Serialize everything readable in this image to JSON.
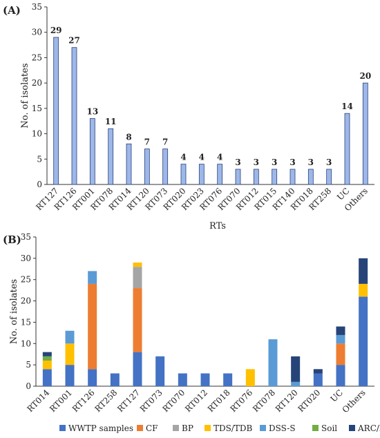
{
  "chart_data": [
    {
      "panel": "(A)",
      "type": "bar",
      "xlabel": "RTs",
      "ylabel": "No. of isolates",
      "ylim": [
        0,
        35
      ],
      "yticks": [
        0,
        5,
        10,
        15,
        20,
        25,
        30,
        35
      ],
      "categories": [
        "RT127",
        "RT126",
        "RT001",
        "RT078",
        "RT014",
        "RT120",
        "RT073",
        "RT020",
        "RT023",
        "RT076",
        "RT070",
        "RT012",
        "RT015",
        "RT140",
        "RT018",
        "RT258",
        "UC",
        "Others"
      ],
      "values": [
        29,
        27,
        13,
        11,
        8,
        7,
        7,
        4,
        4,
        4,
        3,
        3,
        3,
        3,
        3,
        3,
        14,
        20
      ],
      "color": "#9db8e8",
      "edge_color": "#2a3f7a",
      "data_labels": true,
      "grid": false
    },
    {
      "panel": "(B)",
      "type": "bar",
      "stacked": true,
      "xlabel": "",
      "ylabel": "No. of isolates",
      "ylim": [
        0,
        35
      ],
      "yticks": [
        0,
        5,
        10,
        15,
        20,
        25,
        30,
        35
      ],
      "categories": [
        "RT014",
        "RT001",
        "RT126",
        "RT258",
        "RT127",
        "RT073",
        "RT070",
        "RT012",
        "RT018",
        "RT076",
        "RT078",
        "RT120",
        "RT020",
        "UC",
        "Others"
      ],
      "series": [
        {
          "name": "WWTP samples",
          "color": "#4472c4",
          "values": [
            4,
            5,
            4,
            3,
            8,
            7,
            3,
            3,
            3,
            0,
            0,
            0,
            3,
            5,
            21
          ]
        },
        {
          "name": "CF",
          "color": "#ed7d31",
          "values": [
            0,
            0,
            20,
            0,
            15,
            0,
            0,
            0,
            0,
            0,
            0,
            0,
            0,
            5,
            0
          ]
        },
        {
          "name": "BP",
          "color": "#a5a5a5",
          "values": [
            0,
            0,
            0,
            0,
            5,
            0,
            0,
            0,
            0,
            0,
            0,
            0,
            0,
            0,
            0
          ]
        },
        {
          "name": "TDS/TDB",
          "color": "#ffc000",
          "values": [
            2,
            5,
            0,
            0,
            1,
            0,
            0,
            0,
            0,
            4,
            0,
            0,
            0,
            0,
            3
          ]
        },
        {
          "name": "DSS-S",
          "color": "#5b9bd5",
          "values": [
            0,
            3,
            3,
            0,
            0,
            0,
            0,
            0,
            0,
            0,
            11,
            1,
            0,
            2,
            0
          ]
        },
        {
          "name": "Soil",
          "color": "#70ad47",
          "values": [
            1,
            0,
            0,
            0,
            0,
            0,
            0,
            0,
            0,
            0,
            0,
            0,
            0,
            0,
            0
          ]
        },
        {
          "name": "ARC/E",
          "color": "#264478",
          "values": [
            1,
            0,
            0,
            0,
            0,
            0,
            0,
            0,
            0,
            0,
            0,
            6,
            1,
            2,
            6
          ]
        }
      ],
      "legend_position": "bottom",
      "grid": false
    }
  ]
}
